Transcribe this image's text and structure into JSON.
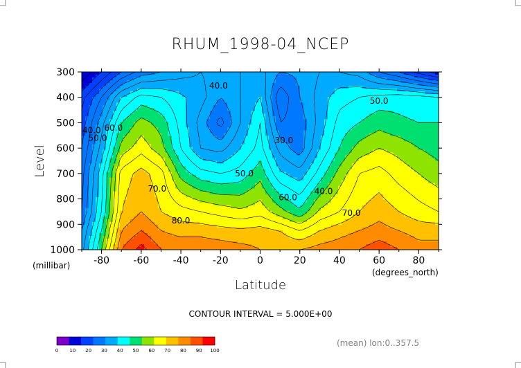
{
  "chart_data": {
    "type": "heatmap",
    "title": "RHUM_1998-04_NCEP",
    "xlabel": "Latitude",
    "ylabel": "Level",
    "x_unit": "(degrees_north)",
    "y_unit": "(millibar)",
    "xlim": [
      -90,
      90
    ],
    "ylim": [
      1000,
      300
    ],
    "x_ticks": [
      "-80",
      "-60",
      "-40",
      "-20",
      "0",
      "20",
      "40",
      "60",
      "80"
    ],
    "x_tick_values": [
      -80,
      -60,
      -40,
      -20,
      0,
      20,
      40,
      60,
      80
    ],
    "y_ticks": [
      "300",
      "400",
      "500",
      "600",
      "700",
      "800",
      "900",
      "1000"
    ],
    "y_tick_values": [
      300,
      400,
      500,
      600,
      700,
      800,
      900,
      1000
    ],
    "latitudes": [
      -90,
      -80,
      -70,
      -60,
      -50,
      -40,
      -30,
      -20,
      -10,
      0,
      10,
      20,
      30,
      40,
      50,
      60,
      70,
      80,
      90
    ],
    "levels": [
      1000,
      925,
      850,
      700,
      600,
      500,
      400,
      300
    ],
    "values": [
      [
        38,
        60,
        85,
        92,
        85,
        84,
        84,
        83,
        82,
        80,
        80,
        80,
        82,
        83,
        85,
        88,
        85,
        82,
        82
      ],
      [
        35,
        55,
        80,
        85,
        80,
        78,
        78,
        77,
        76,
        77,
        75,
        70,
        75,
        78,
        80,
        82,
        80,
        78,
        78
      ],
      [
        30,
        50,
        75,
        80,
        75,
        72,
        70,
        68,
        66,
        68,
        62,
        56,
        66,
        70,
        75,
        78,
        75,
        72,
        70
      ],
      [
        28,
        48,
        72,
        77,
        72,
        58,
        52,
        50,
        52,
        58,
        46,
        42,
        52,
        62,
        70,
        72,
        68,
        65,
        62
      ],
      [
        25,
        42,
        62,
        68,
        62,
        50,
        40,
        38,
        45,
        52,
        38,
        32,
        45,
        55,
        62,
        65,
        63,
        60,
        58
      ],
      [
        22,
        38,
        55,
        62,
        58,
        48,
        38,
        28,
        40,
        50,
        30,
        32,
        42,
        52,
        55,
        58,
        56,
        55,
        55
      ],
      [
        18,
        30,
        45,
        52,
        50,
        46,
        42,
        35,
        40,
        45,
        26,
        35,
        42,
        48,
        50,
        52,
        53,
        52,
        50
      ],
      [
        5,
        15,
        25,
        32,
        35,
        38,
        40,
        38,
        40,
        42,
        35,
        36,
        40,
        40,
        38,
        30,
        25,
        18,
        12
      ]
    ],
    "contour_interval": 5,
    "contour_labels": [
      {
        "text": "40.0",
        "lat": -85,
        "lev": 530
      },
      {
        "text": "50.0",
        "lat": -82,
        "lev": 560
      },
      {
        "text": "60.0",
        "lat": -74,
        "lev": 520
      },
      {
        "text": "40.0",
        "lat": -21,
        "lev": 355
      },
      {
        "text": "50.0",
        "lat": -8,
        "lev": 700
      },
      {
        "text": "70.0",
        "lat": -52,
        "lev": 760
      },
      {
        "text": "80.0",
        "lat": -40,
        "lev": 885
      },
      {
        "text": "30.0",
        "lat": 12,
        "lev": 570
      },
      {
        "text": "60.0",
        "lat": 14,
        "lev": 795
      },
      {
        "text": "40.0",
        "lat": 32,
        "lev": 770
      },
      {
        "text": "70.0",
        "lat": 46,
        "lev": 855
      },
      {
        "text": "50.0",
        "lat": 60,
        "lev": 415
      }
    ],
    "colorbar": {
      "tick_labels": [
        "0",
        "10",
        "20",
        "30",
        "40",
        "50",
        "60",
        "70",
        "80",
        "90",
        "100"
      ],
      "colors": [
        "#7a00c8",
        "#0000d8",
        "#0042ff",
        "#0078ff",
        "#00aaff",
        "#00ffff",
        "#00e070",
        "#8ee400",
        "#ffff00",
        "#ffc000",
        "#ff8c00",
        "#ff5000",
        "#ff0000"
      ]
    }
  },
  "labels": {
    "contour_interval_text": "CONTOUR INTERVAL = 5.000E+00",
    "mean_text": "(mean) lon:0..357.5"
  }
}
